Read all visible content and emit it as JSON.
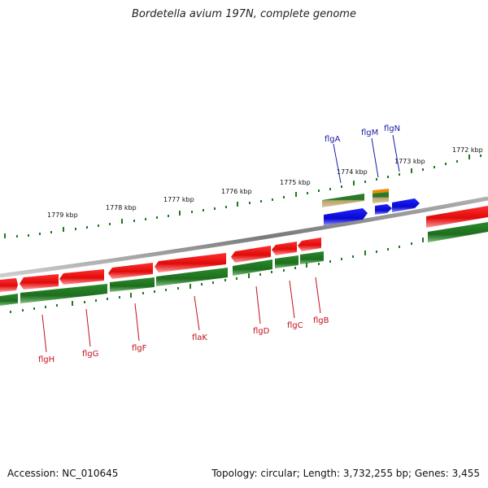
{
  "header": {
    "title": "Bordetella avium 197N, complete genome"
  },
  "footer": {
    "accession": "Accession: NC_010645",
    "summary": "Topology: circular; Length: 3,732,255 bp; Genes: 3,455"
  },
  "ticks": [
    "1779 kbp",
    "1778 kbp",
    "1777 kbp",
    "1776 kbp",
    "1775 kbp",
    "1774 kbp",
    "1773 kbp",
    "1772 kbp"
  ],
  "genes_top": [
    "flgA",
    "flgM",
    "flgN"
  ],
  "genes_bottom": [
    "flgH",
    "flgG",
    "flgF",
    "flaK",
    "flgD",
    "flgC",
    "flgB"
  ],
  "colors": {
    "backbone": "#8a8a8a",
    "forward": "#1010e0",
    "reverse": "#e01010",
    "feature": "#228822",
    "tick": "#1f7a1f",
    "top_label": "#1a1aa8",
    "bottom_label": "#c0101a",
    "orange": "#f08a00"
  }
}
